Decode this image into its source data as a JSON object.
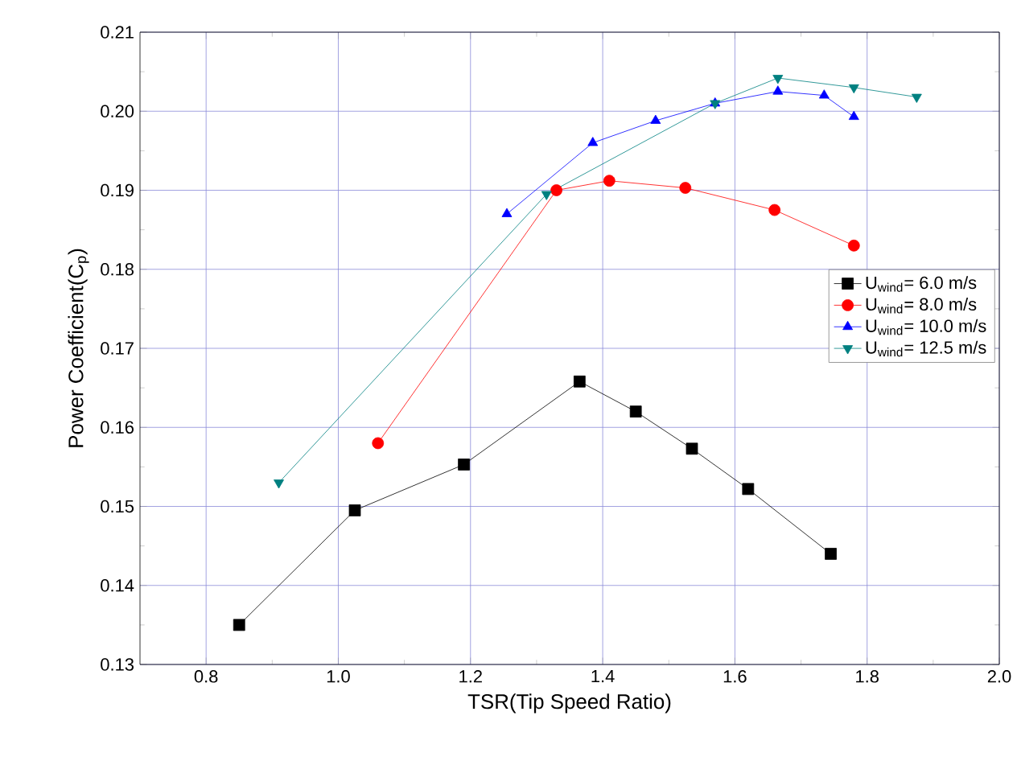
{
  "chart_data": {
    "type": "line",
    "xlabel": "TSR(Tip Speed Ratio)",
    "ylabel": "Power Coefficient(C$_{p}$)",
    "xlim": [
      0.7,
      2.0
    ],
    "xticks": [
      0.8,
      {
        "value": 1.0,
        "label": "1.0"
      },
      1.2,
      1.4,
      1.6,
      1.8,
      {
        "value": 2.0,
        "label": "2.0"
      }
    ],
    "ylim": [
      0.13,
      0.21
    ],
    "yticks": [
      {
        "value": 0.13,
        "label": "0.13"
      },
      {
        "value": 0.14,
        "label": "0.14"
      },
      {
        "value": 0.15,
        "label": "0.15"
      },
      {
        "value": 0.16,
        "label": "0.16"
      },
      {
        "value": 0.17,
        "label": "0.17"
      },
      {
        "value": 0.18,
        "label": "0.18"
      },
      {
        "value": 0.19,
        "label": "0.19"
      },
      {
        "value": 0.2,
        "label": "0.20"
      },
      {
        "value": 0.21,
        "label": "0.21"
      }
    ],
    "grid": true,
    "legend": "right",
    "series": [
      {
        "name": "U$_{wind}$= 6.0 m/s",
        "color": "#000000",
        "marker": "square",
        "x": [
          0.85,
          1.025,
          1.19,
          1.365,
          1.45,
          1.535,
          1.62,
          1.745
        ],
        "values": [
          0.135,
          0.1495,
          0.1553,
          0.1658,
          0.162,
          0.1573,
          0.1522,
          0.144
        ]
      },
      {
        "name": "U$_{wind}$= 8.0 m/s",
        "color": "#ff0000",
        "marker": "circle",
        "x": [
          1.06,
          1.33,
          1.41,
          1.525,
          1.66,
          1.78
        ],
        "values": [
          0.158,
          0.19,
          0.1912,
          0.1903,
          0.1875,
          0.183
        ]
      },
      {
        "name": "U$_{wind}$= 10.0 m/s",
        "color": "#0000ff",
        "marker": "triangle",
        "x": [
          1.255,
          1.385,
          1.48,
          1.57,
          1.665,
          1.735,
          1.78
        ],
        "values": [
          0.187,
          0.196,
          0.1988,
          0.201,
          0.2025,
          0.202,
          0.1993
        ]
      },
      {
        "name": "U$_{wind}$= 12.5 m/s",
        "color": "#008080",
        "marker": "triangle-down",
        "x": [
          0.91,
          1.315,
          1.57,
          1.665,
          1.78,
          1.875
        ],
        "values": [
          0.153,
          0.1895,
          0.201,
          0.2042,
          0.203,
          0.2018
        ]
      }
    ]
  }
}
